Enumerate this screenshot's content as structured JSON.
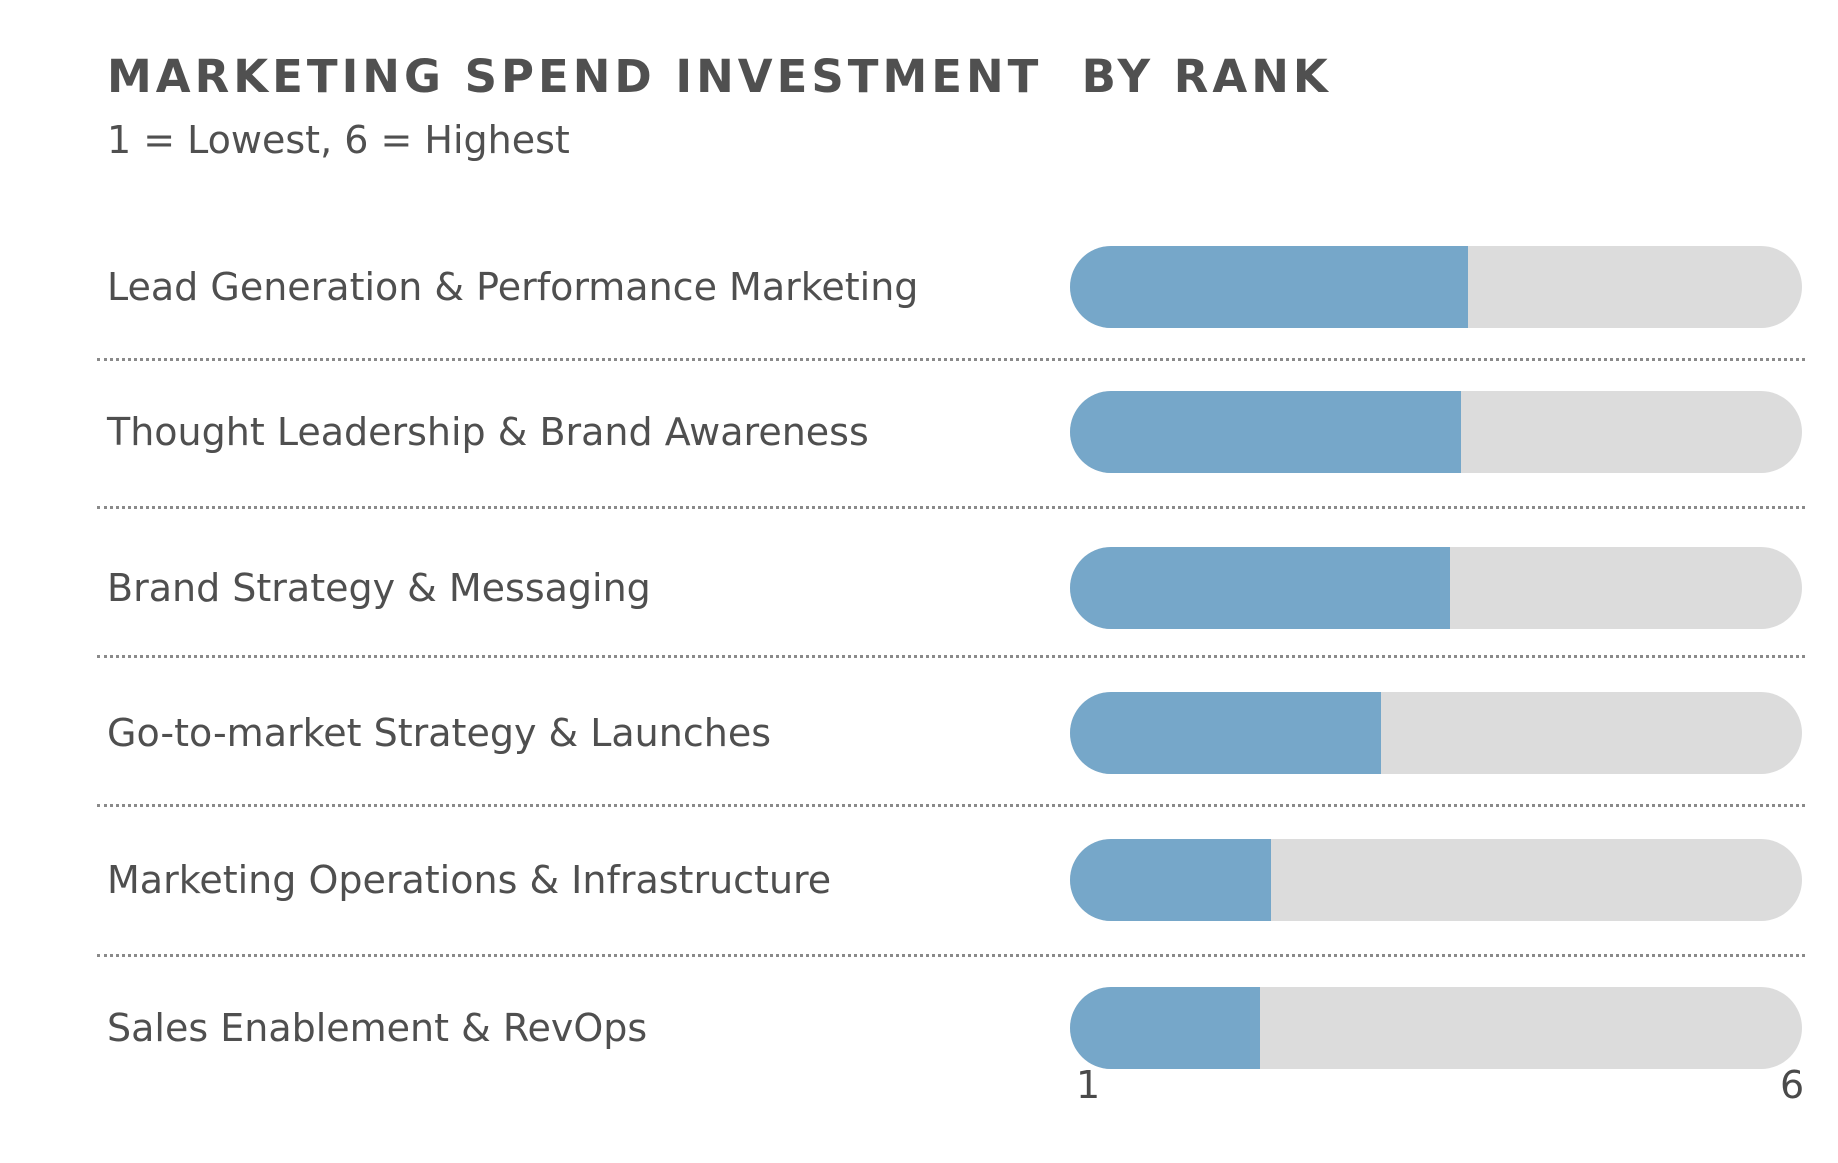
{
  "chart_data": {
    "type": "bar",
    "orientation": "horizontal",
    "title": "MARKETING SPEND INVESTMENT  BY RANK",
    "subtitle": "1 = Lowest, 6 = Highest",
    "categories": [
      "Lead Generation & Performance Marketing",
      "Thought Leadership & Brand Awareness",
      "Brand Strategy & Messaging",
      "Go-to-market Strategy & Launches",
      "Marketing Operations & Infrastructure",
      "Sales Enablement & RevOps"
    ],
    "values": [
      3.7,
      3.65,
      3.57,
      3.08,
      2.3,
      2.22
    ],
    "xlim": [
      1,
      6
    ],
    "tick_labels": [
      "1",
      "6"
    ],
    "grid": false,
    "colors": {
      "fill": "#76a7c9",
      "track": "#dcdcdc"
    }
  }
}
